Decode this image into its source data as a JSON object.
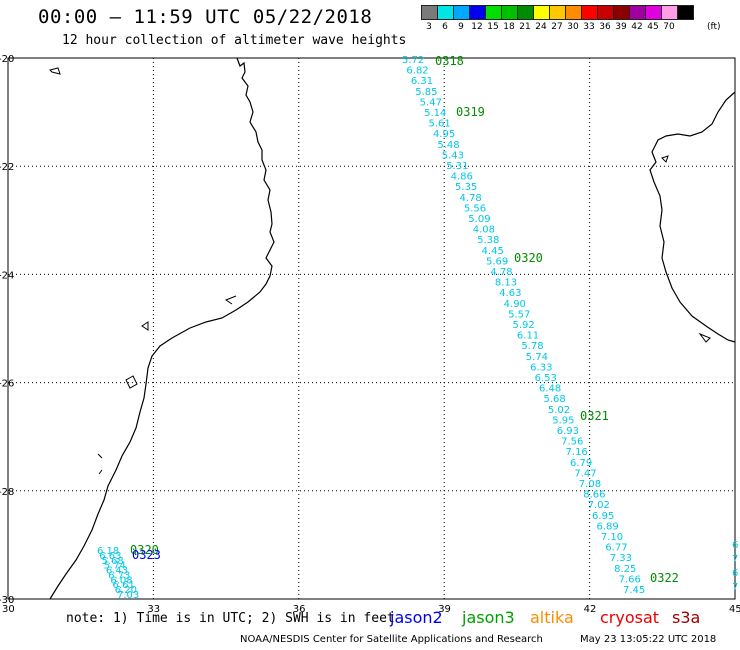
{
  "header": {
    "title": "00:00 – 11:59 UTC 05/22/2018",
    "subtitle": "12 hour collection of altimeter wave heights"
  },
  "scale": {
    "unit": "(ft)",
    "bins": [
      {
        "label": "3",
        "color": "#7a7a7a"
      },
      {
        "label": "6",
        "color": "#00e6e6"
      },
      {
        "label": "9",
        "color": "#00a8ff"
      },
      {
        "label": "12",
        "color": "#0000ee"
      },
      {
        "label": "15",
        "color": "#00e000"
      },
      {
        "label": "18",
        "color": "#00c000"
      },
      {
        "label": "21",
        "color": "#008c00"
      },
      {
        "label": "24",
        "color": "#ffff00"
      },
      {
        "label": "27",
        "color": "#ffc800"
      },
      {
        "label": "30",
        "color": "#ff8c00"
      },
      {
        "label": "33",
        "color": "#ff0000"
      },
      {
        "label": "36",
        "color": "#c80000"
      },
      {
        "label": "39",
        "color": "#8c0000"
      },
      {
        "label": "42",
        "color": "#a000a0"
      },
      {
        "label": "45",
        "color": "#e000e0"
      },
      {
        "label": "70",
        "color": "#ff9ee6"
      },
      {
        "label": "",
        "color": "#000000"
      }
    ]
  },
  "map": {
    "lon_range": [
      30,
      45
    ],
    "lat_range": [
      -30,
      -20
    ],
    "lon_ticks": [
      "30",
      "33",
      "36",
      "39",
      "42",
      "45"
    ],
    "lat_ticks": [
      "-20",
      "-22",
      "-24",
      "-26",
      "-28",
      "-30"
    ],
    "track_color": "#00c8e6",
    "pass_color": "#008c00",
    "main_track": {
      "values": [
        "5.72",
        "6.82",
        "6.31",
        "5.85",
        "5.47",
        "5.14",
        "5.61",
        "4.95",
        "5.48",
        "5.43",
        "5.31",
        "4.86",
        "5.35",
        "4.78",
        "5.56",
        "5.09",
        "4.08",
        "5.38",
        "4.45",
        "5.69",
        "4.78",
        "8.13",
        "4.63",
        "4.90",
        "5.57",
        "5.92",
        "6.11",
        "5.78",
        "5.74",
        "6.33",
        "6.53",
        "6.48",
        "5.68",
        "5.02",
        "5.95",
        "6.93",
        "7.56",
        "7.16",
        "6.79",
        "7.47",
        "7.08",
        "8.66",
        "7.02",
        "6.95",
        "6.89",
        "7.10",
        "6.77",
        "7.33",
        "8.25",
        "7.66",
        "7.45"
      ]
    },
    "pass_labels": [
      "0318",
      "0319",
      "0320",
      "0321",
      "0322"
    ],
    "left_track": {
      "values": [
        "6.18",
        "6.63",
        "5.68",
        "5.74",
        "6.43",
        "6.73",
        "6.08",
        "6.61",
        "6.20",
        "7.03"
      ],
      "pass_labels": [
        "0320",
        "0323"
      ]
    },
    "right_edge_values": [
      "6",
      "7",
      "6",
      "7"
    ]
  },
  "note": {
    "text": "note: 1) Time is in UTC; 2) SWH is in feet"
  },
  "satellites": [
    {
      "name": "jason2",
      "color": "#0000ee"
    },
    {
      "name": "jason3",
      "color": "#00a000"
    },
    {
      "name": "altika",
      "color": "#ff8c00"
    },
    {
      "name": "cryosat",
      "color": "#ee0000"
    },
    {
      "name": "s3a",
      "color": "#a00000"
    }
  ],
  "footer": {
    "credit": "NOAA/NESDIS Center for Satellite Applications and Research",
    "timestamp": "May 23 13:05:22 UTC 2018"
  }
}
